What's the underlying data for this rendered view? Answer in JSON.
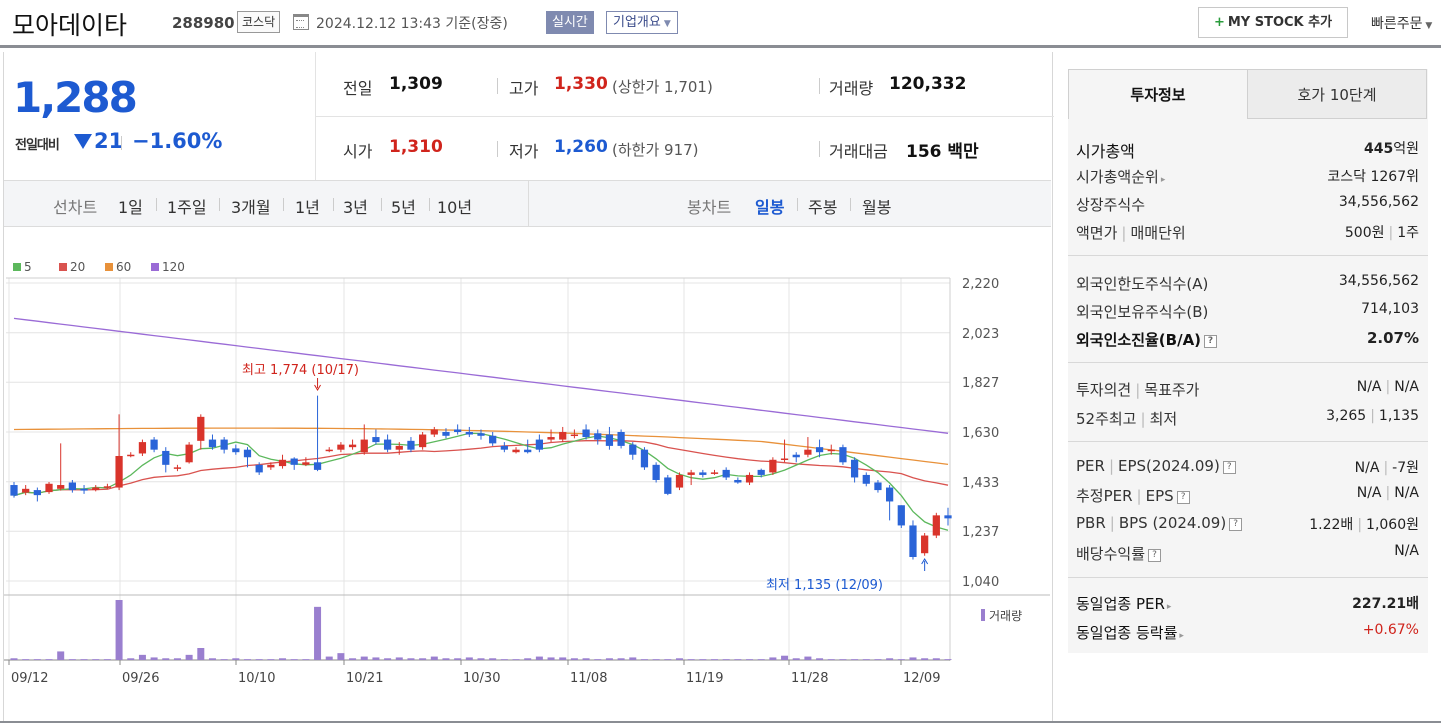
{
  "header": {
    "company_name": "모아데이타",
    "company_code": "288980",
    "market": "코스닥",
    "datetime": "2024.12.12 13:43 기준(장중)",
    "realtime": "실시간",
    "overview": "기업개요",
    "mystock": "MY STOCK 추가",
    "quick_order": "빠른주문"
  },
  "price": {
    "current": "1,288",
    "change_label": "전일대비",
    "change_value": "21",
    "change_pct": "−1.60%",
    "direction": "down"
  },
  "quote": {
    "prev_label": "전일",
    "prev_value": "1,309",
    "high_label": "고가",
    "high_value": "1,330",
    "upper_limit": "(상한가 1,701)",
    "volume_label": "거래량",
    "volume_value": "120,332",
    "open_label": "시가",
    "open_value": "1,310",
    "low_label": "저가",
    "low_value": "1,260",
    "lower_limit": "(하한가 917)",
    "amount_label": "거래대금",
    "amount_value": "156 백만"
  },
  "chart_tabs": {
    "line_label": "선차트",
    "line_periods": [
      "1일",
      "1주일",
      "3개월",
      "1년",
      "3년",
      "5년",
      "10년"
    ],
    "candle_label": "봉차트",
    "candle_periods": [
      "일봉",
      "주봉",
      "월봉"
    ],
    "active_candle": "일봉"
  },
  "chart_data": {
    "type": "candlestick",
    "legend": [
      {
        "name": "5",
        "color": "#5cb85c"
      },
      {
        "name": "20",
        "color": "#d9534f"
      },
      {
        "name": "60",
        "color": "#e8913a"
      },
      {
        "name": "120",
        "color": "#9a6bd6"
      }
    ],
    "y_ticks": [
      2220,
      2023,
      1827,
      1630,
      1433,
      1237,
      1040
    ],
    "ylim": [
      1000,
      2270
    ],
    "x_ticks": [
      "09/12",
      "09/26",
      "10/10",
      "10/21",
      "10/30",
      "11/08",
      "11/19",
      "11/28",
      "12/09"
    ],
    "annotation_high": "최고 1,774 (10/17)",
    "annotation_low": "최저 1,135 (12/09)",
    "volume_label": "거래량",
    "candles": [
      [
        1420,
        1378,
        1432,
        1370
      ],
      [
        1390,
        1405,
        1420,
        1380
      ],
      [
        1400,
        1380,
        1410,
        1355
      ],
      [
        1392,
        1425,
        1432,
        1385
      ],
      [
        1405,
        1420,
        1585,
        1398
      ],
      [
        1430,
        1400,
        1440,
        1390
      ],
      [
        1405,
        1398,
        1420,
        1385
      ],
      [
        1400,
        1410,
        1420,
        1395
      ],
      [
        1415,
        1415,
        1425,
        1405
      ],
      [
        1410,
        1535,
        1700,
        1400
      ],
      [
        1540,
        1540,
        1550,
        1530
      ],
      [
        1545,
        1590,
        1600,
        1535
      ],
      [
        1600,
        1560,
        1610,
        1550
      ],
      [
        1555,
        1500,
        1570,
        1470
      ],
      [
        1490,
        1490,
        1500,
        1475
      ],
      [
        1510,
        1580,
        1590,
        1505
      ],
      [
        1595,
        1690,
        1700,
        1560
      ],
      [
        1600,
        1570,
        1620,
        1560
      ],
      [
        1600,
        1560,
        1610,
        1545
      ],
      [
        1565,
        1550,
        1580,
        1540
      ],
      [
        1560,
        1530,
        1570,
        1490
      ],
      [
        1500,
        1470,
        1510,
        1460
      ],
      [
        1490,
        1500,
        1510,
        1480
      ],
      [
        1495,
        1520,
        1540,
        1485
      ],
      [
        1525,
        1500,
        1530,
        1480
      ],
      [
        1500,
        1510,
        1530,
        1495
      ],
      [
        1510,
        1480,
        1774,
        1475
      ],
      [
        1560,
        1560,
        1570,
        1550
      ],
      [
        1560,
        1580,
        1590,
        1550
      ],
      [
        1570,
        1580,
        1600,
        1560
      ],
      [
        1550,
        1600,
        1660,
        1540
      ],
      [
        1610,
        1590,
        1640,
        1580
      ],
      [
        1600,
        1560,
        1620,
        1550
      ],
      [
        1560,
        1575,
        1590,
        1540
      ],
      [
        1595,
        1560,
        1610,
        1550
      ],
      [
        1570,
        1620,
        1630,
        1560
      ],
      [
        1620,
        1640,
        1650,
        1610
      ],
      [
        1630,
        1615,
        1645,
        1605
      ],
      [
        1640,
        1630,
        1660,
        1620
      ],
      [
        1630,
        1620,
        1650,
        1610
      ],
      [
        1625,
        1615,
        1640,
        1600
      ],
      [
        1615,
        1585,
        1630,
        1575
      ],
      [
        1575,
        1560,
        1590,
        1550
      ],
      [
        1550,
        1560,
        1570,
        1545
      ],
      [
        1560,
        1550,
        1600,
        1545
      ],
      [
        1600,
        1560,
        1620,
        1550
      ],
      [
        1600,
        1610,
        1640,
        1590
      ],
      [
        1600,
        1630,
        1650,
        1590
      ],
      [
        1615,
        1620,
        1640,
        1605
      ],
      [
        1640,
        1610,
        1660,
        1600
      ],
      [
        1625,
        1600,
        1640,
        1580
      ],
      [
        1620,
        1575,
        1650,
        1560
      ],
      [
        1630,
        1575,
        1640,
        1565
      ],
      [
        1580,
        1540,
        1590,
        1520
      ],
      [
        1560,
        1490,
        1570,
        1480
      ],
      [
        1500,
        1440,
        1510,
        1430
      ],
      [
        1450,
        1385,
        1460,
        1380
      ],
      [
        1410,
        1460,
        1470,
        1400
      ],
      [
        1460,
        1470,
        1480,
        1420
      ],
      [
        1470,
        1460,
        1480,
        1450
      ],
      [
        1470,
        1470,
        1480,
        1460
      ],
      [
        1480,
        1450,
        1490,
        1440
      ],
      [
        1440,
        1430,
        1450,
        1425
      ],
      [
        1430,
        1460,
        1470,
        1420
      ],
      [
        1480,
        1460,
        1485,
        1450
      ],
      [
        1470,
        1520,
        1530,
        1460
      ],
      [
        1520,
        1525,
        1600,
        1510
      ],
      [
        1540,
        1530,
        1550,
        1510
      ],
      [
        1540,
        1560,
        1610,
        1530
      ],
      [
        1570,
        1550,
        1600,
        1530
      ],
      [
        1560,
        1560,
        1580,
        1540
      ],
      [
        1570,
        1510,
        1580,
        1500
      ],
      [
        1520,
        1450,
        1530,
        1430
      ],
      [
        1460,
        1425,
        1470,
        1415
      ],
      [
        1430,
        1400,
        1440,
        1390
      ],
      [
        1410,
        1355,
        1420,
        1280
      ],
      [
        1340,
        1260,
        1340,
        1250
      ],
      [
        1260,
        1135,
        1280,
        1125
      ],
      [
        1150,
        1220,
        1230,
        1140
      ],
      [
        1220,
        1300,
        1310,
        1210
      ],
      [
        1300,
        1288,
        1330,
        1260
      ]
    ],
    "volumes": [
      2,
      1,
      1,
      1,
      10,
      1,
      1,
      1,
      1,
      70,
      2,
      6,
      3,
      2,
      2,
      6,
      14,
      2,
      1,
      2,
      1,
      1,
      1,
      2,
      1,
      1,
      62,
      4,
      8,
      2,
      4,
      3,
      2,
      3,
      2,
      2,
      4,
      2,
      2,
      3,
      2,
      2,
      1,
      1,
      2,
      4,
      3,
      3,
      2,
      2,
      1,
      2,
      2,
      3,
      1,
      1,
      1,
      2,
      1,
      1,
      1,
      1,
      1,
      1,
      1,
      3,
      5,
      2,
      4,
      2,
      1,
      1,
      1,
      1,
      1,
      2,
      1,
      3,
      2,
      2,
      1
    ]
  },
  "invest": {
    "tab_invest": "투자정보",
    "tab_hoga": "호가 10단계",
    "market_cap_label": "시가총액",
    "market_cap_value": "445",
    "market_cap_unit": "억원",
    "rank_label": "시가총액순위",
    "rank_value": "코스닥 1267위",
    "shares_label": "상장주식수",
    "shares_value": "34,556,562",
    "par_label": "액면가",
    "unit_label": "매매단위",
    "par_value": "500원",
    "unit_value": "1주",
    "foreign_limit_label": "외국인한도주식수(A)",
    "foreign_limit_value": "34,556,562",
    "foreign_hold_label": "외국인보유주식수(B)",
    "foreign_hold_value": "714,103",
    "foreign_ratio_label": "외국인소진율(B/A)",
    "foreign_ratio_value": "2.07%",
    "opinion_label": "투자의견",
    "target_label": "목표주가",
    "opinion_value": "N/A",
    "target_value": "N/A",
    "w52_high_label": "52주최고",
    "w52_low_label": "최저",
    "w52_high_value": "3,265",
    "w52_low_value": "1,135",
    "per_label": "PER",
    "eps_label": "EPS(2024.09)",
    "per_value": "N/A",
    "eps_value": "-7원",
    "est_per_label": "추정PER",
    "est_eps_label": "EPS",
    "est_per_value": "N/A",
    "est_eps_value": "N/A",
    "pbr_label": "PBR",
    "bps_label": "BPS (2024.09)",
    "pbr_value": "1.22배",
    "bps_value": "1,060원",
    "div_label": "배당수익률",
    "div_value": "N/A",
    "sector_per_label": "동일업종 PER",
    "sector_per_value": "227.21배",
    "sector_chg_label": "동일업종 등락률",
    "sector_chg_value": "+0.67%"
  }
}
